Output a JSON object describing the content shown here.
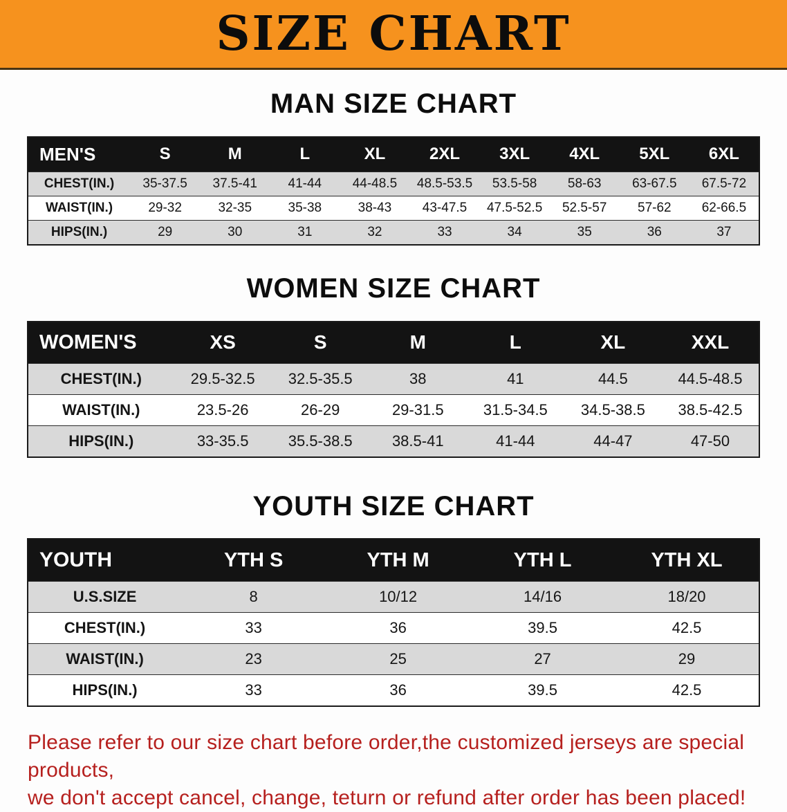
{
  "banner": {
    "title": "SIZE CHART",
    "bg_color": "#F6921E"
  },
  "sections": [
    {
      "id": "men",
      "heading": "MAN SIZE CHART",
      "table": {
        "header": [
          "MEN'S",
          "S",
          "M",
          "L",
          "XL",
          "2XL",
          "3XL",
          "4XL",
          "5XL",
          "6XL"
        ],
        "rows": [
          [
            "CHEST(IN.)",
            "35-37.5",
            "37.5-41",
            "41-44",
            "44-48.5",
            "48.5-53.5",
            "53.5-58",
            "58-63",
            "63-67.5",
            "67.5-72"
          ],
          [
            "WAIST(IN.)",
            "29-32",
            "32-35",
            "35-38",
            "38-43",
            "43-47.5",
            "47.5-52.5",
            "52.5-57",
            "57-62",
            "62-66.5"
          ],
          [
            "HIPS(IN.)",
            "29",
            "30",
            "31",
            "32",
            "33",
            "34",
            "35",
            "36",
            "37"
          ]
        ]
      }
    },
    {
      "id": "women",
      "heading": "WOMEN SIZE CHART",
      "table": {
        "header": [
          "WOMEN'S",
          "XS",
          "S",
          "M",
          "L",
          "XL",
          "XXL"
        ],
        "rows": [
          [
            "CHEST(IN.)",
            "29.5-32.5",
            "32.5-35.5",
            "38",
            "41",
            "44.5",
            "44.5-48.5"
          ],
          [
            "WAIST(IN.)",
            "23.5-26",
            "26-29",
            "29-31.5",
            "31.5-34.5",
            "34.5-38.5",
            "38.5-42.5"
          ],
          [
            "HIPS(IN.)",
            "33-35.5",
            "35.5-38.5",
            "38.5-41",
            "41-44",
            "44-47",
            "47-50"
          ]
        ]
      }
    },
    {
      "id": "youth",
      "heading": "YOUTH SIZE CHART",
      "table": {
        "header": [
          "YOUTH",
          "YTH S",
          "YTH M",
          "YTH L",
          "YTH XL"
        ],
        "rows": [
          [
            "U.S.SIZE",
            "8",
            "10/12",
            "14/16",
            "18/20"
          ],
          [
            "CHEST(IN.)",
            "33",
            "36",
            "39.5",
            "42.5"
          ],
          [
            "WAIST(IN.)",
            "23",
            "25",
            "27",
            "29"
          ],
          [
            "HIPS(IN.)",
            "33",
            "36",
            "39.5",
            "42.5"
          ]
        ]
      }
    }
  ],
  "disclaimer": {
    "line1": "Please refer to our size chart before order,the customized jerseys are special products,",
    "line2": "we don't accept cancel, change, teturn or refund after order has been placed!",
    "color": "#B6201E"
  }
}
